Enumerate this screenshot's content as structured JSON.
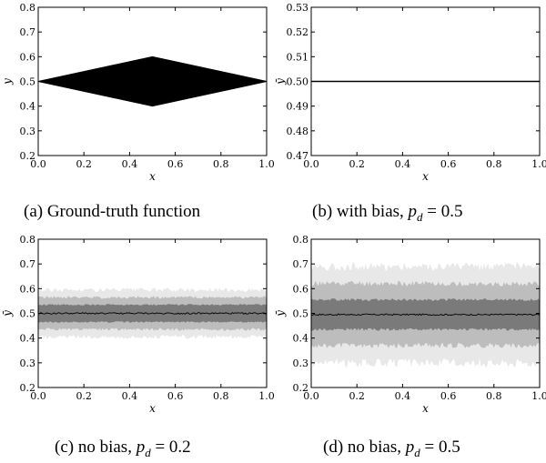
{
  "chart_data": [
    {
      "id": "a",
      "type": "area",
      "caption": "(a) Ground-truth function",
      "xlabel": "x",
      "ylabel": "y",
      "xlim": [
        0.0,
        1.0
      ],
      "ylim": [
        0.2,
        0.8
      ],
      "xticks": [
        "0.0",
        "0.2",
        "0.4",
        "0.6",
        "0.8",
        "1.0"
      ],
      "yticks": [
        "0.2",
        "0.3",
        "0.4",
        "0.5",
        "0.6",
        "0.7",
        "0.8"
      ],
      "grid": false,
      "series": [
        {
          "upper": [
            [
              0.0,
              0.5
            ],
            [
              0.5,
              0.6
            ],
            [
              1.0,
              0.5
            ]
          ],
          "lower": [
            [
              0.0,
              0.5
            ],
            [
              0.5,
              0.4
            ],
            [
              1.0,
              0.5
            ]
          ],
          "color": "#000000"
        }
      ]
    },
    {
      "id": "b",
      "type": "line",
      "caption_text": "(b) with bias,",
      "param_symbol": "p",
      "param_sub": "d",
      "param_value": "= 0.5",
      "xlabel": "x",
      "ylabel": "ȳ",
      "xlim": [
        0.0,
        1.0
      ],
      "ylim": [
        0.47,
        0.53
      ],
      "xticks": [
        "0.0",
        "0.2",
        "0.4",
        "0.6",
        "0.8",
        "1.0"
      ],
      "yticks": [
        "0.47",
        "0.48",
        "0.49",
        "0.50",
        "0.51",
        "0.52",
        "0.53"
      ],
      "grid": false,
      "series": [
        {
          "x": [
            0.0,
            1.0
          ],
          "y": [
            0.5,
            0.5
          ],
          "color": "#000000"
        }
      ]
    },
    {
      "id": "c",
      "type": "area",
      "caption_text": "(c) no bias,",
      "param_symbol": "p",
      "param_sub": "d",
      "param_value": "= 0.2",
      "xlabel": "x",
      "ylabel": "ȳ",
      "xlim": [
        0.0,
        1.0
      ],
      "ylim": [
        0.2,
        0.8
      ],
      "xticks": [
        "0.0",
        "0.2",
        "0.4",
        "0.6",
        "0.8",
        "1.0"
      ],
      "yticks": [
        "0.2",
        "0.3",
        "0.4",
        "0.5",
        "0.6",
        "0.7",
        "0.8"
      ],
      "grid": false,
      "mean": 0.5,
      "bands": [
        {
          "half_width": 0.095,
          "color": "#e8e8e8"
        },
        {
          "half_width": 0.065,
          "color": "#bdbdbd"
        },
        {
          "half_width": 0.035,
          "color": "#7a7a7a"
        }
      ]
    },
    {
      "id": "d",
      "type": "area",
      "caption_text": "(d) no bias,",
      "param_symbol": "p",
      "param_sub": "d",
      "param_value": "= 0.5",
      "xlabel": "x",
      "ylabel": "ȳ",
      "xlim": [
        0.0,
        1.0
      ],
      "ylim": [
        0.2,
        0.8
      ],
      "xticks": [
        "0.0",
        "0.2",
        "0.4",
        "0.6",
        "0.8",
        "1.0"
      ],
      "yticks": [
        "0.2",
        "0.3",
        "0.4",
        "0.5",
        "0.6",
        "0.7",
        "0.8"
      ],
      "grid": false,
      "mean": 0.495,
      "bands": [
        {
          "half_width": 0.195,
          "color": "#e8e8e8"
        },
        {
          "half_width": 0.125,
          "color": "#bdbdbd"
        },
        {
          "half_width": 0.06,
          "color": "#7a7a7a"
        }
      ]
    }
  ]
}
